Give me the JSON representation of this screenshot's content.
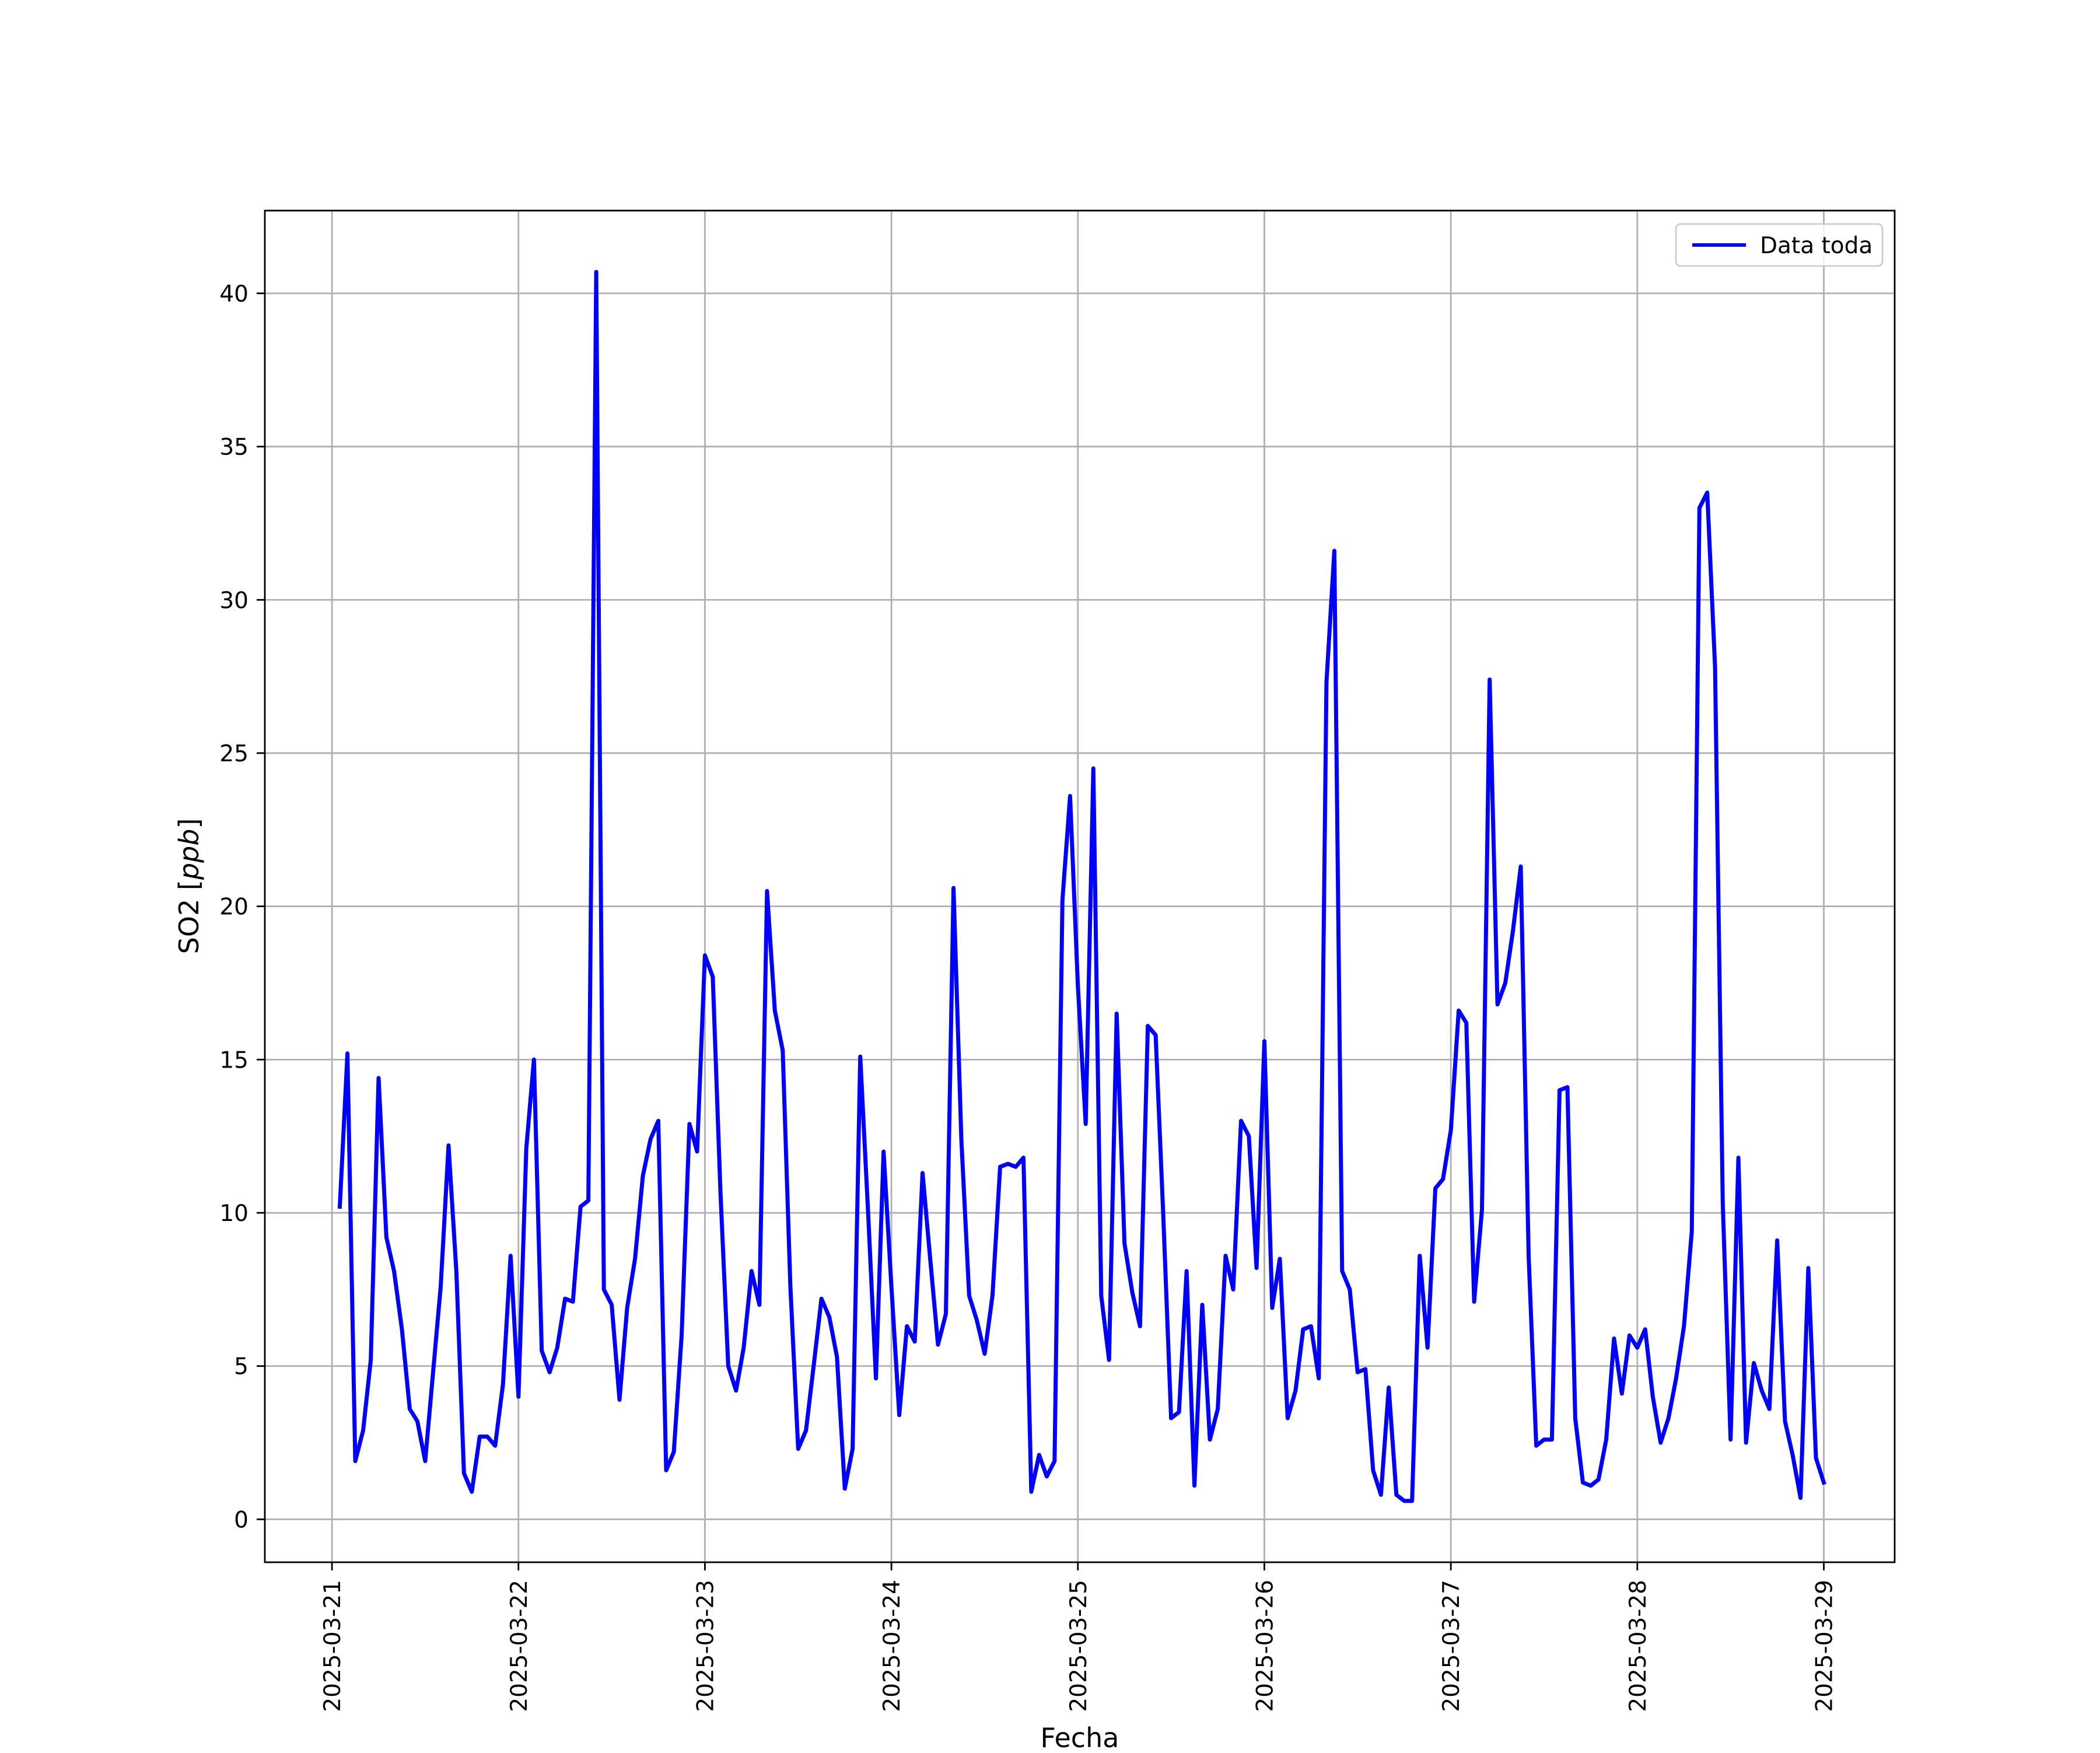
{
  "chart_data": {
    "type": "line",
    "xlabel": "Fecha",
    "ylabel": "SO2 [ppb]",
    "ylabel_text": "SO2 [",
    "ylabel_unit": "ppb",
    "ylabel_close": "]",
    "xlim": [
      -0.36,
      8.38
    ],
    "ylim": [
      -1.4,
      42.7
    ],
    "grid": true,
    "legend_position": "top-right",
    "line_color": "#0000ff",
    "x_ticks": [
      {
        "pos": 0,
        "label": "2025-03-21"
      },
      {
        "pos": 1,
        "label": "2025-03-22"
      },
      {
        "pos": 2,
        "label": "2025-03-23"
      },
      {
        "pos": 3,
        "label": "2025-03-24"
      },
      {
        "pos": 4,
        "label": "2025-03-25"
      },
      {
        "pos": 5,
        "label": "2025-03-26"
      },
      {
        "pos": 6,
        "label": "2025-03-27"
      },
      {
        "pos": 7,
        "label": "2025-03-28"
      },
      {
        "pos": 8,
        "label": "2025-03-29"
      }
    ],
    "y_ticks": [
      0,
      5,
      10,
      15,
      20,
      25,
      30,
      35,
      40
    ],
    "series": [
      {
        "name": "Data toda",
        "points": [
          [
            0.042,
            10.2
          ],
          [
            0.083,
            15.2
          ],
          [
            0.125,
            1.9
          ],
          [
            0.167,
            2.9
          ],
          [
            0.208,
            5.2
          ],
          [
            0.25,
            14.4
          ],
          [
            0.292,
            9.2
          ],
          [
            0.333,
            8.1
          ],
          [
            0.375,
            6.2
          ],
          [
            0.417,
            3.6
          ],
          [
            0.458,
            3.2
          ],
          [
            0.5,
            1.9
          ],
          [
            0.583,
            7.6
          ],
          [
            0.625,
            12.2
          ],
          [
            0.667,
            8.1
          ],
          [
            0.708,
            1.5
          ],
          [
            0.75,
            0.9
          ],
          [
            0.792,
            2.7
          ],
          [
            0.833,
            2.7
          ],
          [
            0.875,
            2.4
          ],
          [
            0.917,
            4.4
          ],
          [
            0.958,
            8.6
          ],
          [
            1.0,
            4.0
          ],
          [
            1.042,
            12.1
          ],
          [
            1.083,
            15.0
          ],
          [
            1.125,
            5.5
          ],
          [
            1.167,
            4.8
          ],
          [
            1.208,
            5.6
          ],
          [
            1.25,
            7.2
          ],
          [
            1.292,
            7.1
          ],
          [
            1.333,
            10.2
          ],
          [
            1.375,
            10.4
          ],
          [
            1.417,
            40.7
          ],
          [
            1.458,
            7.5
          ],
          [
            1.5,
            7.0
          ],
          [
            1.542,
            3.9
          ],
          [
            1.583,
            6.9
          ],
          [
            1.625,
            8.5
          ],
          [
            1.667,
            11.2
          ],
          [
            1.708,
            12.4
          ],
          [
            1.75,
            13.0
          ],
          [
            1.792,
            1.6
          ],
          [
            1.833,
            2.2
          ],
          [
            1.875,
            6.0
          ],
          [
            1.917,
            12.9
          ],
          [
            1.958,
            12.0
          ],
          [
            2.0,
            18.4
          ],
          [
            2.042,
            17.7
          ],
          [
            2.083,
            10.7
          ],
          [
            2.125,
            5.0
          ],
          [
            2.167,
            4.2
          ],
          [
            2.208,
            5.6
          ],
          [
            2.25,
            8.1
          ],
          [
            2.292,
            7.0
          ],
          [
            2.333,
            20.5
          ],
          [
            2.375,
            16.6
          ],
          [
            2.417,
            15.3
          ],
          [
            2.458,
            7.6
          ],
          [
            2.5,
            2.3
          ],
          [
            2.542,
            2.9
          ],
          [
            2.583,
            5.0
          ],
          [
            2.625,
            7.2
          ],
          [
            2.667,
            6.6
          ],
          [
            2.708,
            5.3
          ],
          [
            2.75,
            1.0
          ],
          [
            2.792,
            2.3
          ],
          [
            2.833,
            15.1
          ],
          [
            2.875,
            10.0
          ],
          [
            2.917,
            4.6
          ],
          [
            2.958,
            12.0
          ],
          [
            3.0,
            7.6
          ],
          [
            3.042,
            3.4
          ],
          [
            3.083,
            6.3
          ],
          [
            3.125,
            5.8
          ],
          [
            3.167,
            11.3
          ],
          [
            3.208,
            8.5
          ],
          [
            3.25,
            5.7
          ],
          [
            3.292,
            6.7
          ],
          [
            3.333,
            20.6
          ],
          [
            3.375,
            12.4
          ],
          [
            3.417,
            7.3
          ],
          [
            3.458,
            6.5
          ],
          [
            3.5,
            5.4
          ],
          [
            3.542,
            7.3
          ],
          [
            3.583,
            11.5
          ],
          [
            3.625,
            11.6
          ],
          [
            3.667,
            11.5
          ],
          [
            3.708,
            11.8
          ],
          [
            3.75,
            0.9
          ],
          [
            3.792,
            2.1
          ],
          [
            3.833,
            1.4
          ],
          [
            3.875,
            1.9
          ],
          [
            3.917,
            20.2
          ],
          [
            3.958,
            23.6
          ],
          [
            4.0,
            17.4
          ],
          [
            4.042,
            12.9
          ],
          [
            4.083,
            24.5
          ],
          [
            4.125,
            7.3
          ],
          [
            4.167,
            5.2
          ],
          [
            4.208,
            16.5
          ],
          [
            4.25,
            9.0
          ],
          [
            4.292,
            7.4
          ],
          [
            4.333,
            6.3
          ],
          [
            4.375,
            16.1
          ],
          [
            4.417,
            15.8
          ],
          [
            4.458,
            9.9
          ],
          [
            4.5,
            3.3
          ],
          [
            4.542,
            3.5
          ],
          [
            4.583,
            8.1
          ],
          [
            4.625,
            1.1
          ],
          [
            4.667,
            7.0
          ],
          [
            4.708,
            2.6
          ],
          [
            4.75,
            3.6
          ],
          [
            4.792,
            8.6
          ],
          [
            4.833,
            7.5
          ],
          [
            4.875,
            13.0
          ],
          [
            4.917,
            12.5
          ],
          [
            4.958,
            8.2
          ],
          [
            5.0,
            15.6
          ],
          [
            5.042,
            6.9
          ],
          [
            5.083,
            8.5
          ],
          [
            5.125,
            3.3
          ],
          [
            5.167,
            4.2
          ],
          [
            5.208,
            6.2
          ],
          [
            5.25,
            6.3
          ],
          [
            5.292,
            4.6
          ],
          [
            5.333,
            27.3
          ],
          [
            5.375,
            31.6
          ],
          [
            5.417,
            8.1
          ],
          [
            5.458,
            7.5
          ],
          [
            5.5,
            4.8
          ],
          [
            5.542,
            4.9
          ],
          [
            5.583,
            1.6
          ],
          [
            5.625,
            0.8
          ],
          [
            5.667,
            4.3
          ],
          [
            5.708,
            0.8
          ],
          [
            5.75,
            0.6
          ],
          [
            5.792,
            0.6
          ],
          [
            5.833,
            8.6
          ],
          [
            5.875,
            5.6
          ],
          [
            5.917,
            10.8
          ],
          [
            5.958,
            11.1
          ],
          [
            6.0,
            12.7
          ],
          [
            6.042,
            16.6
          ],
          [
            6.083,
            16.2
          ],
          [
            6.125,
            7.1
          ],
          [
            6.167,
            10.1
          ],
          [
            6.208,
            27.4
          ],
          [
            6.25,
            16.8
          ],
          [
            6.292,
            17.5
          ],
          [
            6.333,
            19.2
          ],
          [
            6.375,
            21.3
          ],
          [
            6.417,
            8.6
          ],
          [
            6.458,
            2.4
          ],
          [
            6.5,
            2.6
          ],
          [
            6.542,
            2.6
          ],
          [
            6.583,
            14.0
          ],
          [
            6.625,
            14.1
          ],
          [
            6.667,
            3.3
          ],
          [
            6.708,
            1.2
          ],
          [
            6.75,
            1.1
          ],
          [
            6.792,
            1.3
          ],
          [
            6.833,
            2.6
          ],
          [
            6.875,
            5.9
          ],
          [
            6.917,
            4.1
          ],
          [
            6.958,
            6.0
          ],
          [
            7.0,
            5.6
          ],
          [
            7.042,
            6.2
          ],
          [
            7.083,
            4.0
          ],
          [
            7.125,
            2.5
          ],
          [
            7.167,
            3.3
          ],
          [
            7.208,
            4.6
          ],
          [
            7.25,
            6.3
          ],
          [
            7.292,
            9.4
          ],
          [
            7.333,
            33.0
          ],
          [
            7.375,
            33.5
          ],
          [
            7.417,
            27.8
          ],
          [
            7.458,
            10.3
          ],
          [
            7.5,
            2.6
          ],
          [
            7.542,
            11.8
          ],
          [
            7.583,
            2.5
          ],
          [
            7.625,
            5.1
          ],
          [
            7.667,
            4.2
          ],
          [
            7.708,
            3.6
          ],
          [
            7.75,
            9.1
          ],
          [
            7.792,
            3.2
          ],
          [
            7.833,
            2.1
          ],
          [
            7.875,
            0.7
          ],
          [
            7.917,
            8.2
          ],
          [
            7.958,
            2.0
          ],
          [
            8.0,
            1.2
          ]
        ]
      }
    ]
  }
}
